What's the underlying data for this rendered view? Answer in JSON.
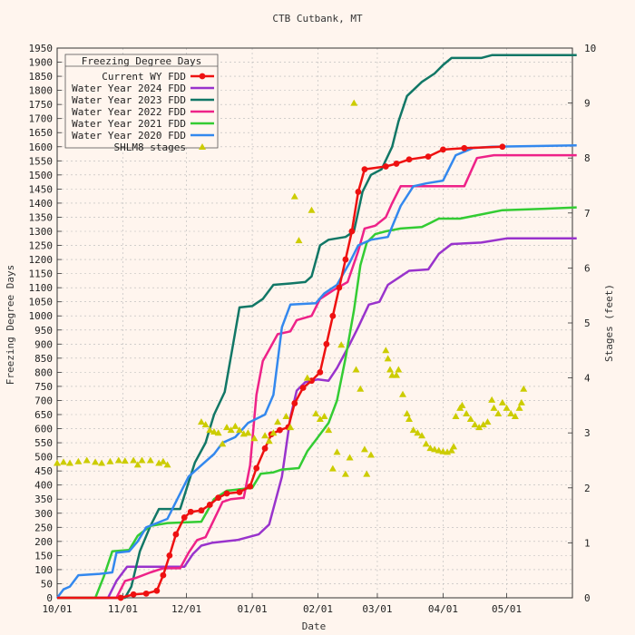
{
  "chart_data": {
    "type": "line",
    "title": "CTB Cutbank, MT",
    "xlabel": "Date",
    "ylabel": "Freezing Degree Days",
    "y2label": "Stages (feet)",
    "x_range": [
      "10/01",
      "06/01"
    ],
    "ylim": [
      0,
      1950
    ],
    "y2lim": [
      0,
      10
    ],
    "x_ticks": [
      "10/01",
      "11/01",
      "12/01",
      "01/01",
      "02/01",
      "03/01",
      "04/01",
      "05/01"
    ],
    "x_tick_days": [
      0,
      31,
      61,
      92,
      123,
      151,
      182,
      212
    ],
    "y_ticks": [
      0,
      50,
      100,
      150,
      200,
      250,
      300,
      350,
      400,
      450,
      500,
      550,
      600,
      650,
      700,
      750,
      800,
      850,
      900,
      950,
      1000,
      1050,
      1100,
      1150,
      1200,
      1250,
      1300,
      1350,
      1400,
      1450,
      1500,
      1550,
      1600,
      1650,
      1700,
      1750,
      1800,
      1850,
      1900,
      1950
    ],
    "y2_ticks": [
      0,
      1,
      2,
      3,
      4,
      5,
      6,
      7,
      8,
      9,
      10
    ],
    "grid": true,
    "legend": {
      "title": "Freezing Degree Days",
      "placement": "top-left"
    },
    "series": [
      {
        "name": "Current WY FDD",
        "color": "#ee1111",
        "markers": true,
        "points": [
          [
            0,
            0
          ],
          [
            30,
            0
          ],
          [
            36,
            12
          ],
          [
            42,
            15
          ],
          [
            47,
            25
          ],
          [
            50,
            80
          ],
          [
            53,
            150
          ],
          [
            56,
            225
          ],
          [
            60,
            285
          ],
          [
            63,
            305
          ],
          [
            68,
            310
          ],
          [
            72,
            330
          ],
          [
            76,
            355
          ],
          [
            80,
            370
          ],
          [
            86,
            375
          ],
          [
            91,
            395
          ],
          [
            94,
            460
          ],
          [
            98,
            530
          ],
          [
            101,
            580
          ],
          [
            105,
            595
          ],
          [
            109,
            605
          ],
          [
            112,
            690
          ],
          [
            116,
            745
          ],
          [
            120,
            770
          ],
          [
            124,
            800
          ],
          [
            127,
            900
          ],
          [
            130,
            1000
          ],
          [
            133,
            1100
          ],
          [
            136,
            1200
          ],
          [
            139,
            1300
          ],
          [
            142,
            1440
          ],
          [
            145,
            1520
          ],
          [
            155,
            1530
          ],
          [
            160,
            1540
          ],
          [
            166,
            1555
          ],
          [
            175,
            1565
          ],
          [
            182,
            1590
          ],
          [
            192,
            1595
          ],
          [
            210,
            1600
          ]
        ]
      },
      {
        "name": "Water Year 2024 FDD",
        "color": "#9933cc",
        "points": [
          [
            0,
            0
          ],
          [
            24,
            0
          ],
          [
            28,
            60
          ],
          [
            33,
            110
          ],
          [
            60,
            110
          ],
          [
            64,
            155
          ],
          [
            68,
            185
          ],
          [
            73,
            195
          ],
          [
            85,
            205
          ],
          [
            95,
            225
          ],
          [
            100,
            260
          ],
          [
            106,
            430
          ],
          [
            110,
            640
          ],
          [
            113,
            735
          ],
          [
            117,
            765
          ],
          [
            123,
            775
          ],
          [
            128,
            770
          ],
          [
            132,
            815
          ],
          [
            138,
            900
          ],
          [
            142,
            960
          ],
          [
            147,
            1040
          ],
          [
            152,
            1050
          ],
          [
            156,
            1110
          ],
          [
            162,
            1140
          ],
          [
            166,
            1160
          ],
          [
            175,
            1165
          ],
          [
            180,
            1220
          ],
          [
            186,
            1255
          ],
          [
            200,
            1260
          ],
          [
            212,
            1275
          ],
          [
            245,
            1275
          ]
        ]
      },
      {
        "name": "Water Year 2023 FDD",
        "color": "#117766",
        "points": [
          [
            0,
            0
          ],
          [
            32,
            0
          ],
          [
            35,
            40
          ],
          [
            39,
            165
          ],
          [
            44,
            255
          ],
          [
            48,
            315
          ],
          [
            58,
            315
          ],
          [
            62,
            410
          ],
          [
            65,
            480
          ],
          [
            70,
            550
          ],
          [
            74,
            650
          ],
          [
            79,
            730
          ],
          [
            83,
            900
          ],
          [
            86,
            1030
          ],
          [
            92,
            1035
          ],
          [
            97,
            1060
          ],
          [
            102,
            1110
          ],
          [
            110,
            1115
          ],
          [
            117,
            1120
          ],
          [
            120,
            1140
          ],
          [
            124,
            1250
          ],
          [
            128,
            1270
          ],
          [
            136,
            1280
          ],
          [
            140,
            1300
          ],
          [
            144,
            1440
          ],
          [
            148,
            1500
          ],
          [
            153,
            1520
          ],
          [
            158,
            1600
          ],
          [
            161,
            1690
          ],
          [
            165,
            1780
          ],
          [
            172,
            1830
          ],
          [
            178,
            1860
          ],
          [
            182,
            1890
          ],
          [
            186,
            1915
          ],
          [
            200,
            1915
          ],
          [
            205,
            1925
          ],
          [
            245,
            1925
          ]
        ]
      },
      {
        "name": "Water Year 2022 FDD",
        "color": "#ee2288",
        "points": [
          [
            0,
            0
          ],
          [
            28,
            0
          ],
          [
            32,
            60
          ],
          [
            37,
            70
          ],
          [
            44,
            90
          ],
          [
            50,
            105
          ],
          [
            58,
            105
          ],
          [
            62,
            160
          ],
          [
            66,
            205
          ],
          [
            70,
            215
          ],
          [
            78,
            340
          ],
          [
            82,
            350
          ],
          [
            88,
            355
          ],
          [
            91,
            470
          ],
          [
            94,
            720
          ],
          [
            97,
            840
          ],
          [
            100,
            880
          ],
          [
            104,
            935
          ],
          [
            110,
            945
          ],
          [
            113,
            985
          ],
          [
            120,
            1000
          ],
          [
            124,
            1060
          ],
          [
            130,
            1090
          ],
          [
            137,
            1120
          ],
          [
            142,
            1230
          ],
          [
            145,
            1310
          ],
          [
            150,
            1320
          ],
          [
            155,
            1350
          ],
          [
            158,
            1400
          ],
          [
            162,
            1460
          ],
          [
            178,
            1460
          ],
          [
            192,
            1460
          ],
          [
            198,
            1560
          ],
          [
            206,
            1570
          ],
          [
            245,
            1570
          ]
        ]
      },
      {
        "name": "Water Year 2021 FDD",
        "color": "#33cc33",
        "points": [
          [
            0,
            0
          ],
          [
            18,
            0
          ],
          [
            22,
            75
          ],
          [
            26,
            165
          ],
          [
            34,
            170
          ],
          [
            38,
            220
          ],
          [
            44,
            255
          ],
          [
            52,
            265
          ],
          [
            68,
            270
          ],
          [
            74,
            350
          ],
          [
            80,
            380
          ],
          [
            86,
            385
          ],
          [
            92,
            390
          ],
          [
            96,
            440
          ],
          [
            102,
            445
          ],
          [
            106,
            455
          ],
          [
            114,
            460
          ],
          [
            118,
            520
          ],
          [
            122,
            560
          ],
          [
            128,
            620
          ],
          [
            132,
            700
          ],
          [
            136,
            850
          ],
          [
            140,
            1020
          ],
          [
            143,
            1180
          ],
          [
            146,
            1260
          ],
          [
            150,
            1290
          ],
          [
            155,
            1300
          ],
          [
            162,
            1310
          ],
          [
            172,
            1315
          ],
          [
            176,
            1330
          ],
          [
            180,
            1345
          ],
          [
            190,
            1345
          ],
          [
            200,
            1360
          ],
          [
            210,
            1375
          ],
          [
            230,
            1380
          ],
          [
            245,
            1385
          ]
        ]
      },
      {
        "name": "Water Year 2020 FDD",
        "color": "#3388ee",
        "points": [
          [
            0,
            0
          ],
          [
            3,
            30
          ],
          [
            6,
            40
          ],
          [
            10,
            80
          ],
          [
            20,
            85
          ],
          [
            26,
            90
          ],
          [
            28,
            160
          ],
          [
            34,
            165
          ],
          [
            38,
            200
          ],
          [
            42,
            250
          ],
          [
            47,
            265
          ],
          [
            52,
            280
          ],
          [
            56,
            340
          ],
          [
            62,
            430
          ],
          [
            68,
            470
          ],
          [
            74,
            510
          ],
          [
            78,
            550
          ],
          [
            84,
            570
          ],
          [
            90,
            620
          ],
          [
            98,
            650
          ],
          [
            102,
            720
          ],
          [
            106,
            960
          ],
          [
            110,
            1040
          ],
          [
            122,
            1045
          ],
          [
            126,
            1080
          ],
          [
            132,
            1110
          ],
          [
            138,
            1190
          ],
          [
            142,
            1250
          ],
          [
            148,
            1270
          ],
          [
            156,
            1280
          ],
          [
            162,
            1390
          ],
          [
            168,
            1460
          ],
          [
            174,
            1470
          ],
          [
            182,
            1480
          ],
          [
            188,
            1570
          ],
          [
            196,
            1595
          ],
          [
            205,
            1600
          ],
          [
            245,
            1605
          ]
        ]
      }
    ],
    "stages": {
      "name": "SHLM8 stages",
      "color": "#cccc00",
      "axis": "y2",
      "points": [
        [
          0,
          2.45
        ],
        [
          3,
          2.47
        ],
        [
          6,
          2.45
        ],
        [
          10,
          2.48
        ],
        [
          14,
          2.5
        ],
        [
          18,
          2.47
        ],
        [
          21,
          2.45
        ],
        [
          25,
          2.48
        ],
        [
          29,
          2.5
        ],
        [
          32,
          2.49
        ],
        [
          36,
          2.5
        ],
        [
          38,
          2.42
        ],
        [
          40,
          2.5
        ],
        [
          44,
          2.5
        ],
        [
          48,
          2.45
        ],
        [
          50,
          2.48
        ],
        [
          52,
          2.42
        ],
        [
          68,
          3.2
        ],
        [
          70,
          3.15
        ],
        [
          72,
          3.05
        ],
        [
          74,
          3.02
        ],
        [
          76,
          3.0
        ],
        [
          78,
          2.8
        ],
        [
          80,
          3.1
        ],
        [
          82,
          3.05
        ],
        [
          84,
          3.12
        ],
        [
          86,
          3.05
        ],
        [
          88,
          2.98
        ],
        [
          90,
          3.0
        ],
        [
          93,
          2.9
        ],
        [
          98,
          2.95
        ],
        [
          100,
          2.85
        ],
        [
          102,
          3.0
        ],
        [
          104,
          3.2
        ],
        [
          108,
          3.3
        ],
        [
          110,
          3.1
        ],
        [
          112,
          7.3
        ],
        [
          114,
          6.5
        ],
        [
          118,
          4.0
        ],
        [
          120,
          7.05
        ],
        [
          122,
          3.35
        ],
        [
          124,
          3.25
        ],
        [
          126,
          3.3
        ],
        [
          128,
          3.05
        ],
        [
          130,
          2.35
        ],
        [
          132,
          2.65
        ],
        [
          134,
          4.6
        ],
        [
          136,
          2.25
        ],
        [
          138,
          2.55
        ],
        [
          140,
          9.0
        ],
        [
          141,
          4.15
        ],
        [
          143,
          3.8
        ],
        [
          145,
          2.7
        ],
        [
          146,
          2.25
        ],
        [
          148,
          2.6
        ],
        [
          155,
          4.5
        ],
        [
          156,
          4.35
        ],
        [
          157,
          4.15
        ],
        [
          158,
          4.05
        ],
        [
          160,
          4.05
        ],
        [
          161,
          4.15
        ],
        [
          163,
          3.7
        ],
        [
          165,
          3.35
        ],
        [
          166,
          3.25
        ],
        [
          168,
          3.05
        ],
        [
          170,
          3.0
        ],
        [
          172,
          2.95
        ],
        [
          174,
          2.8
        ],
        [
          176,
          2.72
        ],
        [
          178,
          2.7
        ],
        [
          180,
          2.68
        ],
        [
          182,
          2.66
        ],
        [
          184,
          2.65
        ],
        [
          186,
          2.68
        ],
        [
          187,
          2.75
        ],
        [
          188,
          3.3
        ],
        [
          190,
          3.45
        ],
        [
          191,
          3.5
        ],
        [
          193,
          3.35
        ],
        [
          195,
          3.25
        ],
        [
          197,
          3.15
        ],
        [
          199,
          3.1
        ],
        [
          201,
          3.15
        ],
        [
          203,
          3.2
        ],
        [
          205,
          3.6
        ],
        [
          206,
          3.45
        ],
        [
          208,
          3.35
        ],
        [
          210,
          3.55
        ],
        [
          212,
          3.45
        ],
        [
          214,
          3.35
        ],
        [
          216,
          3.3
        ],
        [
          218,
          3.45
        ],
        [
          219,
          3.55
        ],
        [
          220,
          3.8
        ]
      ]
    }
  }
}
